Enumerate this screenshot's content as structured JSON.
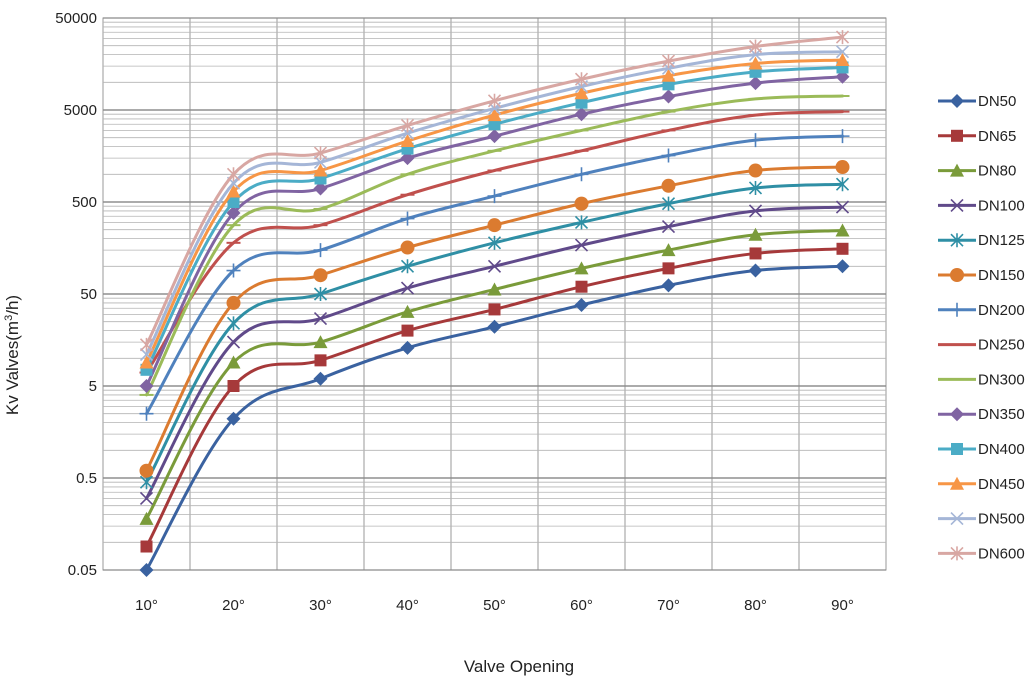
{
  "chart_data": {
    "type": "line",
    "title": "",
    "xlabel": "Valve Opening",
    "ylabel_parts": [
      "Kv Valves(m",
      "3",
      "/h)"
    ],
    "y_scale": "log",
    "ylim": [
      0.05,
      50000
    ],
    "grid": true,
    "legend_position": "right",
    "categories": [
      "10°",
      "20°",
      "30°",
      "40°",
      "50°",
      "60°",
      "70°",
      "80°",
      "90°"
    ],
    "y_ticks": [
      "0.05",
      "0.5",
      "5",
      "50",
      "500",
      "5000",
      "50000"
    ],
    "series": [
      {
        "name": "DN50",
        "color": "#3a62a0",
        "marker": "diamond",
        "values": [
          0.05,
          2.2,
          6,
          13,
          22,
          38,
          62,
          90,
          100
        ]
      },
      {
        "name": "DN65",
        "color": "#a6393a",
        "marker": "square",
        "values": [
          0.09,
          5,
          9.5,
          20,
          34,
          60,
          95,
          138,
          155
        ]
      },
      {
        "name": "DN80",
        "color": "#7a9b3a",
        "marker": "triangle",
        "values": [
          0.18,
          9,
          15,
          32,
          56,
          95,
          150,
          220,
          245
        ]
      },
      {
        "name": "DN100",
        "color": "#604a8a",
        "marker": "x",
        "values": [
          0.3,
          15,
          27,
          58,
          100,
          170,
          270,
          400,
          440
        ]
      },
      {
        "name": "DN125",
        "color": "#2f8fa5",
        "marker": "star",
        "values": [
          0.45,
          24,
          50,
          100,
          180,
          300,
          480,
          710,
          780
        ]
      },
      {
        "name": "DN150",
        "color": "#db7b30",
        "marker": "circle",
        "values": [
          0.6,
          40,
          80,
          160,
          280,
          480,
          750,
          1100,
          1200
        ]
      },
      {
        "name": "DN200",
        "color": "#4f81bd",
        "marker": "plus",
        "values": [
          2.5,
          90,
          150,
          330,
          580,
          1000,
          1600,
          2350,
          2600
        ]
      },
      {
        "name": "DN250",
        "color": "#c0504d",
        "marker": "dash",
        "values": [
          7,
          180,
          280,
          600,
          1100,
          1800,
          3000,
          4400,
          4800
        ]
      },
      {
        "name": "DN300",
        "color": "#9bbb59",
        "marker": "dash",
        "values": [
          4,
          280,
          420,
          1000,
          1800,
          3000,
          4800,
          6600,
          7100
        ]
      },
      {
        "name": "DN350",
        "color": "#8064a2",
        "marker": "diamond",
        "values": [
          5,
          380,
          700,
          1500,
          2600,
          4500,
          7000,
          9800,
          11500
        ]
      },
      {
        "name": "DN400",
        "color": "#4bacc6",
        "marker": "square",
        "values": [
          7.5,
          500,
          900,
          1900,
          3500,
          6000,
          9500,
          13000,
          14500
        ]
      },
      {
        "name": "DN450",
        "color": "#f79646",
        "marker": "triangle",
        "values": [
          9,
          650,
          1100,
          2300,
          4400,
          7600,
          11800,
          16000,
          17500
        ]
      },
      {
        "name": "DN500",
        "color": "#a5b6d7",
        "marker": "x",
        "values": [
          11,
          800,
          1350,
          2800,
          5200,
          9000,
          14200,
          20000,
          21500
        ]
      },
      {
        "name": "DN600",
        "color": "#d8a7a3",
        "marker": "star",
        "values": [
          14,
          1000,
          1700,
          3400,
          6300,
          10800,
          17000,
          24500,
          31000
        ]
      }
    ]
  }
}
